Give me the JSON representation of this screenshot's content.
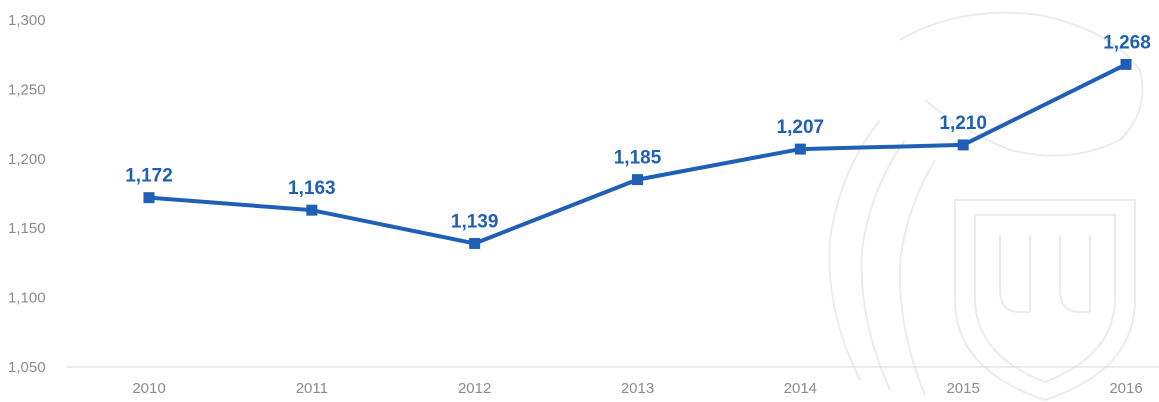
{
  "chart_data": {
    "type": "line",
    "categories": [
      "2010",
      "2011",
      "2012",
      "2013",
      "2014",
      "2015",
      "2016"
    ],
    "series": [
      {
        "values": [
          1172,
          1163,
          1139,
          1185,
          1207,
          1210,
          1268
        ]
      }
    ],
    "data_labels": [
      "1,172",
      "1,163",
      "1,139",
      "1,185",
      "1,207",
      "1,210",
      "1,268"
    ],
    "y_ticks": [
      "1,050",
      "1,100",
      "1,150",
      "1,200",
      "1,250",
      "1,300"
    ],
    "y_tick_values": [
      1050,
      1100,
      1150,
      1200,
      1250,
      1300
    ],
    "ylim": [
      1050,
      1300
    ],
    "title": "",
    "xlabel": "",
    "ylabel": "",
    "grid": false,
    "legend": "none",
    "line_color": "#1f5fb5",
    "axis_color": "#d9d9d9",
    "tick_color": "#8c8c8c"
  },
  "watermark": {
    "icon": "university-shield-watermark-icon"
  }
}
